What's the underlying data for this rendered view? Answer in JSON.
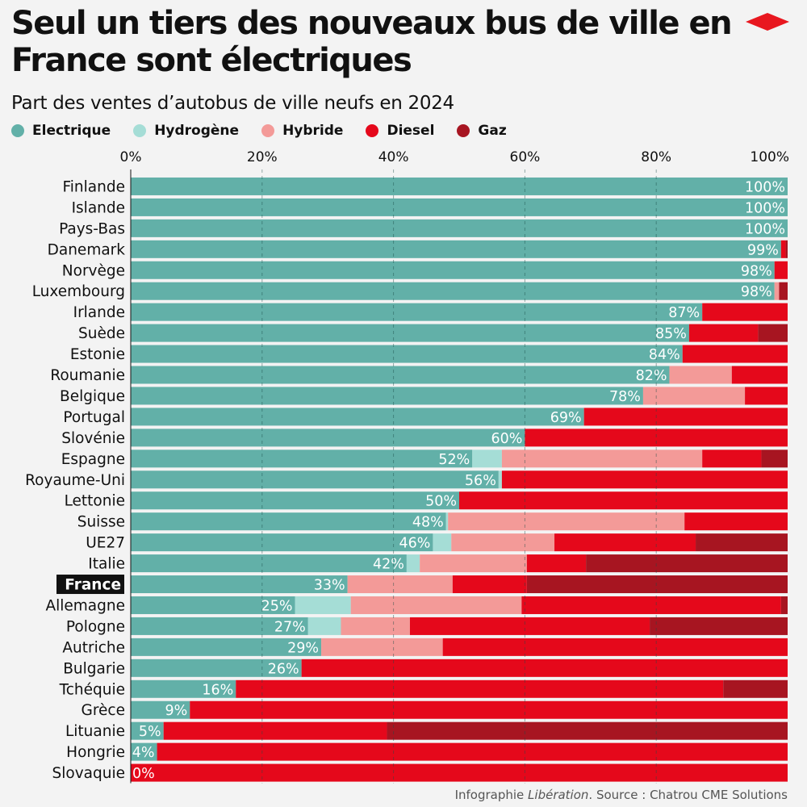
{
  "title": "Seul un tiers des nouveaux bus de ville en France sont électriques",
  "subtitle": "Part des ventes d’autobus de ville neufs en 2024",
  "source": {
    "prefix": "Infographie ",
    "publisher": "Libération",
    "suffix": ". Source : Chatrou CME Solutions"
  },
  "logo_icon": "liberation-logo-icon",
  "colors": {
    "background": "#f3f3f3",
    "Electrique": "#62b0a8",
    "Hydrogène": "#a5ddd6",
    "Hybride": "#f39a98",
    "Diesel": "#e5081b",
    "Gaz": "#a71521",
    "logo": "#e8171f"
  },
  "chart_data": {
    "type": "bar",
    "orientation": "horizontal",
    "stacked": true,
    "xlim": [
      0,
      100
    ],
    "x_ticks": [
      "0%",
      "20%",
      "40%",
      "60%",
      "80%",
      "100%"
    ],
    "x_tick_values": [
      0,
      20,
      40,
      60,
      80,
      100
    ],
    "grid": true,
    "legend_position": "top-left",
    "highlighted_category": "France",
    "categories": [
      "Finlande",
      "Islande",
      "Pays-Bas",
      "Danemark",
      "Norvège",
      "Luxembourg",
      "Irlande",
      "Suède",
      "Estonie",
      "Roumanie",
      "Belgique",
      "Portugal",
      "Slovénie",
      "Espagne",
      "Royaume-Uni",
      "Lettonie",
      "Suisse",
      "UE27",
      "Italie",
      "France",
      "Allemagne",
      "Pologne",
      "Autriche",
      "Bulgarie",
      "Tchéquie",
      "Grèce",
      "Lituanie",
      "Hongrie",
      "Slovaquie"
    ],
    "series": [
      {
        "name": "Electrique",
        "values": [
          100,
          100,
          100,
          99,
          98,
          98,
          87,
          85,
          84,
          82,
          78,
          69,
          60,
          52,
          56,
          50,
          48,
          46,
          42,
          33,
          25,
          27,
          29,
          26,
          16,
          9,
          5,
          4,
          0
        ]
      },
      {
        "name": "Hydrogène",
        "values": [
          0,
          0,
          0,
          0,
          0,
          0,
          0,
          0,
          0,
          0,
          0,
          0,
          0,
          4.5,
          0.5,
          0,
          0.3,
          2.8,
          2,
          0,
          8.5,
          5,
          0,
          0,
          0,
          0,
          0,
          0,
          0
        ]
      },
      {
        "name": "Hybride",
        "values": [
          0,
          0,
          0,
          0,
          0,
          0.7,
          0,
          0,
          0,
          9.5,
          15.5,
          0,
          0,
          30.5,
          0,
          0,
          36,
          15.7,
          16.3,
          16,
          26,
          10.5,
          18.5,
          0,
          0,
          0,
          0,
          0,
          0
        ]
      },
      {
        "name": "Diesel",
        "values": [
          0,
          0,
          0,
          0.7,
          2,
          0,
          13,
          10.5,
          16,
          8.5,
          6.5,
          31,
          40,
          9,
          43.5,
          50,
          15.7,
          21.5,
          9,
          11.3,
          39.5,
          36.5,
          52.5,
          74,
          74.2,
          91,
          34,
          96,
          100
        ]
      },
      {
        "name": "Gaz",
        "values": [
          0,
          0,
          0,
          0.3,
          0,
          1.3,
          0,
          4.5,
          0,
          0,
          0,
          0,
          0,
          4,
          0,
          0,
          0,
          14,
          30.7,
          39.7,
          1,
          21,
          0,
          0,
          9.8,
          0,
          61,
          0,
          0
        ]
      }
    ],
    "value_labels": [
      "100%",
      "100%",
      "100%",
      "99%",
      "98%",
      "98%",
      "87%",
      "85%",
      "84%",
      "82%",
      "78%",
      "69%",
      "60%",
      "52%",
      "56%",
      "50%",
      "48%",
      "46%",
      "42%",
      "33%",
      "25%",
      "27%",
      "29%",
      "26%",
      "16%",
      "9%",
      "5%",
      "4%",
      "0%"
    ]
  }
}
